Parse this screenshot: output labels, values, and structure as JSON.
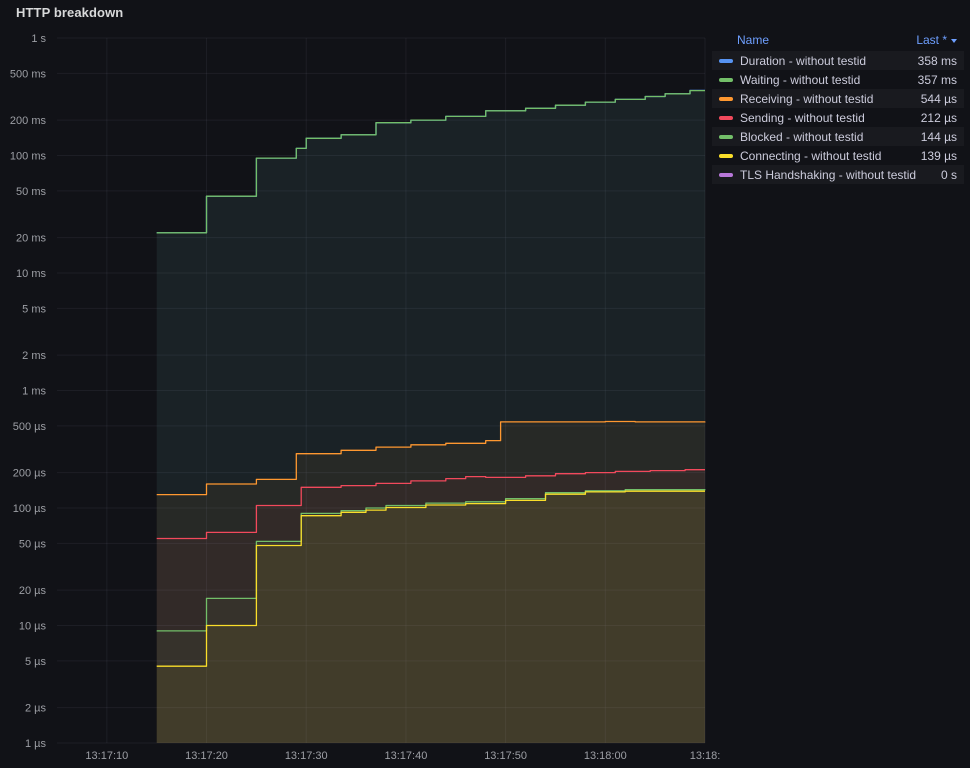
{
  "panel": {
    "title": "HTTP breakdown"
  },
  "colors": {
    "background": "#111217",
    "link": "#6e9fff",
    "text": "#ccccdc",
    "tick_text": "#9d9fa5",
    "grid": "rgba(204,204,220,0.07)"
  },
  "legend": {
    "name_header": "Name",
    "sort_header": "Last *",
    "rows": [
      {
        "name": "Duration - without testid",
        "value": "358 ms",
        "color": "#5794f2"
      },
      {
        "name": "Waiting - without testid",
        "value": "357 ms",
        "color": "#73bf69"
      },
      {
        "name": "Receiving - without testid",
        "value": "544 µs",
        "color": "#ff9830"
      },
      {
        "name": "Sending - without testid",
        "value": "212 µs",
        "color": "#f2495c"
      },
      {
        "name": "Blocked - without testid",
        "value": "144 µs",
        "color": "#73bf69"
      },
      {
        "name": "Connecting - without testid",
        "value": "139 µs",
        "color": "#fade2a"
      },
      {
        "name": "TLS Handshaking - without testid",
        "value": "0 s",
        "color": "#b877d9"
      }
    ]
  },
  "chart_data": {
    "type": "line",
    "title": "HTTP breakdown",
    "y_scale": "log",
    "grid": true,
    "legend_position": "right-top",
    "x_domain_seconds": [
      5,
      70
    ],
    "y_domain_seconds": [
      1e-06,
      1
    ],
    "x_ticks": [
      {
        "s": 10,
        "label": "13:17:10"
      },
      {
        "s": 20,
        "label": "13:17:20"
      },
      {
        "s": 30,
        "label": "13:17:30"
      },
      {
        "s": 40,
        "label": "13:17:40"
      },
      {
        "s": 50,
        "label": "13:17:50"
      },
      {
        "s": 60,
        "label": "13:18:00"
      },
      {
        "s": 70,
        "label": "13:18:"
      }
    ],
    "y_ticks": [
      {
        "v": 1,
        "label": "1 s"
      },
      {
        "v": 0.5,
        "label": "500 ms"
      },
      {
        "v": 0.2,
        "label": "200 ms"
      },
      {
        "v": 0.1,
        "label": "100 ms"
      },
      {
        "v": 0.05,
        "label": "50 ms"
      },
      {
        "v": 0.02,
        "label": "20 ms"
      },
      {
        "v": 0.01,
        "label": "10 ms"
      },
      {
        "v": 0.005,
        "label": "5 ms"
      },
      {
        "v": 0.002,
        "label": "2 ms"
      },
      {
        "v": 0.001,
        "label": "1 ms"
      },
      {
        "v": 0.0005,
        "label": "500 µs"
      },
      {
        "v": 0.0002,
        "label": "200 µs"
      },
      {
        "v": 0.0001,
        "label": "100 µs"
      },
      {
        "v": 5e-05,
        "label": "50 µs"
      },
      {
        "v": 2e-05,
        "label": "20 µs"
      },
      {
        "v": 1e-05,
        "label": "10 µs"
      },
      {
        "v": 5e-06,
        "label": "5 µs"
      },
      {
        "v": 2e-06,
        "label": "2 µs"
      },
      {
        "v": 1e-06,
        "label": "1 µs"
      }
    ],
    "series": [
      {
        "name": "Duration - without testid",
        "color": "#5794f2",
        "last": "358 ms",
        "points": [
          [
            15,
            0.022
          ],
          [
            20,
            0.045
          ],
          [
            25,
            0.095
          ],
          [
            29,
            0.115
          ],
          [
            30,
            0.14
          ],
          [
            33.5,
            0.15
          ],
          [
            37,
            0.19
          ],
          [
            40.5,
            0.2
          ],
          [
            44,
            0.215
          ],
          [
            48,
            0.24
          ],
          [
            52,
            0.252
          ],
          [
            55,
            0.268
          ],
          [
            58,
            0.285
          ],
          [
            61,
            0.3
          ],
          [
            64,
            0.318
          ],
          [
            66,
            0.335
          ],
          [
            68.5,
            0.358
          ],
          [
            70,
            0.358
          ]
        ]
      },
      {
        "name": "Waiting - without testid",
        "color": "#73bf69",
        "last": "357 ms",
        "points": [
          [
            15,
            0.022
          ],
          [
            20,
            0.045
          ],
          [
            25,
            0.095
          ],
          [
            29,
            0.115
          ],
          [
            30,
            0.14
          ],
          [
            33.5,
            0.15
          ],
          [
            37,
            0.19
          ],
          [
            40.5,
            0.2
          ],
          [
            44,
            0.215
          ],
          [
            48,
            0.24
          ],
          [
            52,
            0.252
          ],
          [
            55,
            0.268
          ],
          [
            58,
            0.285
          ],
          [
            61,
            0.3
          ],
          [
            64,
            0.318
          ],
          [
            66,
            0.335
          ],
          [
            68.5,
            0.357
          ],
          [
            70,
            0.357
          ]
        ]
      },
      {
        "name": "Receiving - without testid",
        "color": "#ff9830",
        "last": "544 µs",
        "points": [
          [
            15,
            0.00013
          ],
          [
            20,
            0.00016
          ],
          [
            25,
            0.000175
          ],
          [
            29,
            0.00029
          ],
          [
            33.5,
            0.00031
          ],
          [
            37,
            0.00033
          ],
          [
            40.5,
            0.000345
          ],
          [
            44,
            0.000355
          ],
          [
            48,
            0.000375
          ],
          [
            49.5,
            0.00054
          ],
          [
            60,
            0.000545
          ],
          [
            63,
            0.00054
          ],
          [
            70,
            0.000544
          ]
        ]
      },
      {
        "name": "Sending - without testid",
        "color": "#f2495c",
        "last": "212 µs",
        "points": [
          [
            15,
            5.5e-05
          ],
          [
            20,
            6.2e-05
          ],
          [
            25,
            0.000105
          ],
          [
            29.5,
            0.00015
          ],
          [
            33.5,
            0.000155
          ],
          [
            37,
            0.000162
          ],
          [
            40.5,
            0.00017
          ],
          [
            44,
            0.000178
          ],
          [
            46,
            0.000185
          ],
          [
            48,
            0.000182
          ],
          [
            52,
            0.000188
          ],
          [
            55,
            0.000196
          ],
          [
            58,
            0.0002
          ],
          [
            61,
            0.000205
          ],
          [
            64.5,
            0.000208
          ],
          [
            68,
            0.000212
          ],
          [
            70,
            0.000212
          ]
        ]
      },
      {
        "name": "Blocked - without testid",
        "color": "#73bf69",
        "last": "144 µs",
        "points": [
          [
            15,
            9e-06
          ],
          [
            20,
            1.7e-05
          ],
          [
            25,
            5.2e-05
          ],
          [
            29.5,
            9e-05
          ],
          [
            33.5,
            9.5e-05
          ],
          [
            36,
            0.0001
          ],
          [
            38,
            0.000105
          ],
          [
            42,
            0.00011
          ],
          [
            46,
            0.000113
          ],
          [
            50,
            0.00012
          ],
          [
            54,
            0.000135
          ],
          [
            58,
            0.00014
          ],
          [
            62,
            0.000143
          ],
          [
            70,
            0.000144
          ]
        ]
      },
      {
        "name": "Connecting - without testid",
        "color": "#fade2a",
        "last": "139 µs",
        "points": [
          [
            15,
            4.5e-06
          ],
          [
            20,
            1e-05
          ],
          [
            25,
            4.8e-05
          ],
          [
            29.5,
            8.6e-05
          ],
          [
            33.5,
            9.2e-05
          ],
          [
            36,
            9.6e-05
          ],
          [
            38,
            0.000101
          ],
          [
            42,
            0.000106
          ],
          [
            46,
            0.000109
          ],
          [
            50,
            0.000116
          ],
          [
            54,
            0.000131
          ],
          [
            58,
            0.000137
          ],
          [
            62,
            0.000139
          ],
          [
            70,
            0.000139
          ]
        ]
      },
      {
        "name": "TLS Handshaking - without testid",
        "color": "#b877d9",
        "last": "0 s",
        "points": []
      }
    ]
  }
}
